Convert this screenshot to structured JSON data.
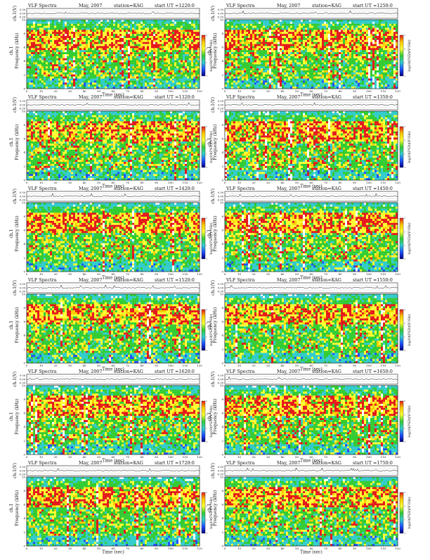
{
  "page": {
    "background": "#ffffff",
    "panels": [
      {
        "title": "VLF Spectra",
        "month": "May, 2007",
        "station": "station=KAG",
        "start": "start  UT  =1220:0"
      },
      {
        "title": "VLF Spectra",
        "month": "May, 2007",
        "station": "station=KAG",
        "start": "start  UT  =1250:0"
      },
      {
        "title": "VLF Spectra",
        "month": "May, 2007",
        "station": "station=KAG",
        "start": "start  UT  =1320:0"
      },
      {
        "title": "VLF Spectra",
        "month": "May, 2007",
        "station": "station=KAG",
        "start": "start  UT  =1350:0"
      },
      {
        "title": "VLF Spectra",
        "month": "May, 2007",
        "station": "station=KAG",
        "start": "start  UT  =1420:0"
      },
      {
        "title": "VLF Spectra",
        "month": "May, 2007",
        "station": "station=KAG",
        "start": "start  UT  =1450:0"
      },
      {
        "title": "VLF Spectra",
        "month": "May, 2007",
        "station": "station=KAG",
        "start": "start  UT  =1520:0"
      },
      {
        "title": "VLF Spectra",
        "month": "May, 2007",
        "station": "station=KAG",
        "start": "start  UT  =1550:0"
      },
      {
        "title": "VLF Spectra",
        "month": "May, 2007",
        "station": "station=KAG",
        "start": "start  UT  =1620:0"
      },
      {
        "title": "VLF Spectra",
        "month": "May, 2007",
        "station": "station=KAG",
        "start": "start  UT  =1650:0"
      },
      {
        "title": "VLF Spectra",
        "month": "May, 2007",
        "station": "station=KAG",
        "start": "start  UT  =1720:0"
      },
      {
        "title": "VLF Spectra",
        "month": "May, 2007",
        "station": "station=KAG",
        "start": "start  UT  =1750:0"
      }
    ]
  },
  "chart_data": {
    "type": "heatmap",
    "panel_count": 12,
    "layout": "6 rows x 2 columns",
    "waveform": {
      "ylabel": "ch.1(V)",
      "ytick_labels": [
        "0.30",
        "0.00",
        "-0.30"
      ],
      "ylim": [
        -0.3,
        0.3
      ]
    },
    "spectrogram": {
      "xlabel": "Time  (sec)",
      "ylabel_channel": "ch.1",
      "ylabel": "Frequency  (kHz)",
      "xlim": [
        0,
        120
      ],
      "xticks": [
        0,
        10,
        20,
        30,
        40,
        50,
        60,
        70,
        80,
        90,
        100,
        110,
        120
      ],
      "ylim": [
        0,
        10
      ],
      "yticks": [
        0,
        2,
        4,
        6,
        8,
        10
      ]
    },
    "colorbar": {
      "label": "log10(PSD)(V²/Hz)",
      "tick_labels": [
        "5",
        "3",
        "1",
        "-1"
      ],
      "colors": [
        "#e41a1c",
        "#ffcc00",
        "#ffff33",
        "#33cc33",
        "#33cccc",
        "#1f4fff",
        "#000080"
      ]
    },
    "gap_color": "#ffffff"
  }
}
